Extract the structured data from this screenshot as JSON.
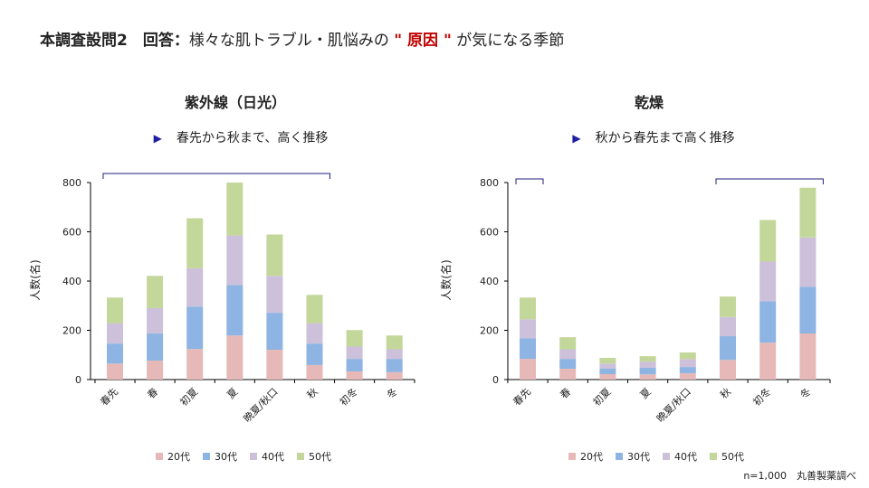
{
  "header": {
    "title_bold": "本調査設問2　回答：",
    "title_text1": "様々な肌トラブル・肌悩みの",
    "title_red": "\" 原因 \"",
    "title_text2": "が気になる季節"
  },
  "colors": {
    "20代": "#e6b9b8",
    "30代": "#8db4e2",
    "40代": "#ccc0da",
    "50代": "#c4d79b",
    "bracket": "#1f1f7f",
    "marker": "#1f1f9f"
  },
  "footer_note": "n=1,000　丸善製薬調べ",
  "chart_data": [
    {
      "type": "bar",
      "stacked": true,
      "title": "紫外線（日光）",
      "subtitle": "春先から秋まで、高く推移",
      "subtitle_marker_icon": "triangle-right-icon",
      "ylabel": "人数(名)",
      "ylim": [
        0,
        800
      ],
      "yticks": [
        0,
        200,
        400,
        600,
        800
      ],
      "categories": [
        "春先",
        "春",
        "初夏",
        "夏",
        "晩夏/秋口",
        "秋",
        "初冬",
        "冬"
      ],
      "highlight_brackets": [
        [
          "春先",
          "秋"
        ]
      ],
      "legend_position": "bottom",
      "series": [
        {
          "name": "20代",
          "values": [
            65,
            77,
            124,
            179,
            121,
            59,
            33,
            30
          ]
        },
        {
          "name": "30代",
          "values": [
            81,
            110,
            172,
            205,
            150,
            87,
            51,
            54
          ]
        },
        {
          "name": "40代",
          "values": [
            83,
            103,
            156,
            201,
            150,
            83,
            50,
            39
          ]
        },
        {
          "name": "50代",
          "values": [
            104,
            131,
            203,
            215,
            168,
            115,
            67,
            56
          ]
        }
      ]
    },
    {
      "type": "bar",
      "stacked": true,
      "title": "乾燥",
      "subtitle": "秋から春先まで高く推移",
      "subtitle_marker_icon": "triangle-right-icon",
      "ylabel": "人数(名)",
      "ylim": [
        0,
        800
      ],
      "yticks": [
        0,
        200,
        400,
        600,
        800
      ],
      "categories": [
        "春先",
        "春",
        "初夏",
        "夏",
        "晩夏/秋口",
        "秋",
        "初冬",
        "冬"
      ],
      "highlight_brackets": [
        [
          "春先",
          "春先"
        ],
        [
          "秋",
          "冬"
        ]
      ],
      "legend_position": "bottom",
      "series": [
        {
          "name": "20代",
          "values": [
            84,
            44,
            22,
            21,
            26,
            80,
            150,
            187
          ]
        },
        {
          "name": "30代",
          "values": [
            84,
            40,
            22,
            27,
            25,
            96,
            168,
            190
          ]
        },
        {
          "name": "40代",
          "values": [
            77,
            39,
            21,
            25,
            32,
            78,
            161,
            200
          ]
        },
        {
          "name": "50代",
          "values": [
            88,
            49,
            23,
            22,
            27,
            83,
            169,
            202
          ]
        }
      ]
    }
  ]
}
